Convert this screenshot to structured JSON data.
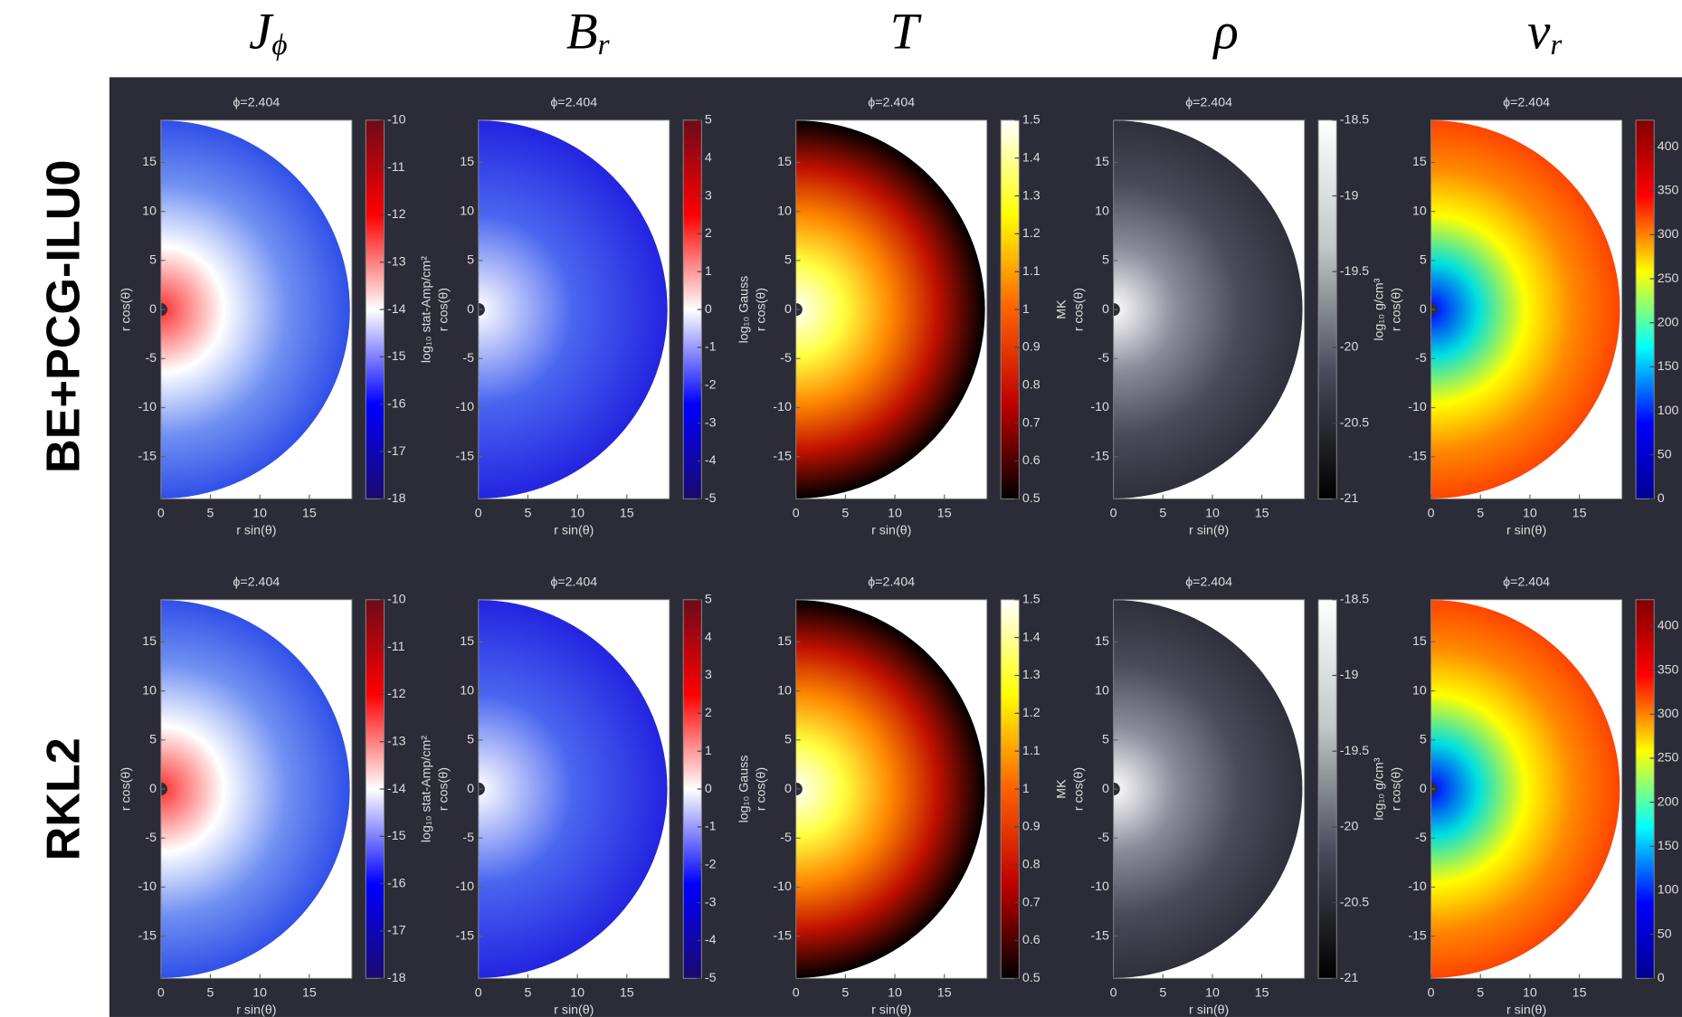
{
  "headers": [
    {
      "symbol": "J",
      "sub": "ϕ"
    },
    {
      "symbol": "B",
      "sub": "r"
    },
    {
      "symbol": "T",
      "sub": ""
    },
    {
      "symbol": "ρ",
      "sub": ""
    },
    {
      "symbol": "v",
      "sub": "r"
    }
  ],
  "row_labels": [
    "BE+PCG-ILU0",
    "RKL2"
  ],
  "chart_data": [
    {
      "type": "heatmap",
      "title": "ϕ=2.404",
      "xlabel": "r sin(θ)",
      "ylabel": "r cos(θ)",
      "xlim": [
        0,
        19.3
      ],
      "ylim": [
        -19.3,
        19.3
      ],
      "xticks": [
        0,
        5,
        10,
        15
      ],
      "yticks": [
        -15,
        -10,
        -5,
        0,
        5,
        10,
        15
      ],
      "field_colors": [
        "#ff3030",
        "#ffffff",
        "#7090f2",
        "#3050e8"
      ],
      "colorbar": {
        "label": "log₁₀ stat-Amp/cm²",
        "lim": [
          -18,
          -10
        ],
        "ticks": [
          -18,
          -17,
          -16,
          -15,
          -14,
          -13,
          -12,
          -11,
          -10
        ],
        "colors": [
          "#1a0a6e",
          "#0000ff",
          "#ffffff",
          "#ff0000",
          "#6e0a1a"
        ]
      }
    },
    {
      "type": "heatmap",
      "title": "ϕ=2.404",
      "xlabel": "r sin(θ)",
      "ylabel": "r cos(θ)",
      "xlim": [
        0,
        19.3
      ],
      "ylim": [
        -19.3,
        19.3
      ],
      "xticks": [
        0,
        5,
        10,
        15
      ],
      "yticks": [
        -15,
        -10,
        -5,
        0,
        5,
        10,
        15
      ],
      "field_colors": [
        "#ffffff",
        "#4a66f0",
        "#2424e0"
      ],
      "colorbar": {
        "label": "log₁₀ Gauss",
        "lim": [
          -5,
          5
        ],
        "ticks": [
          -5,
          -4,
          -3,
          -2,
          -1,
          0,
          1,
          2,
          3,
          4,
          5
        ],
        "colors": [
          "#1a0a6e",
          "#0000ff",
          "#ffffff",
          "#ff0000",
          "#6e0a1a"
        ]
      }
    },
    {
      "type": "heatmap",
      "title": "ϕ=2.404",
      "xlabel": "r sin(θ)",
      "ylabel": "r cos(θ)",
      "xlim": [
        0,
        19.3
      ],
      "ylim": [
        -19.3,
        19.3
      ],
      "xticks": [
        0,
        5,
        10,
        15
      ],
      "yticks": [
        -15,
        -10,
        -5,
        0,
        5,
        10,
        15
      ],
      "field_colors": [
        "#ffffff",
        "#ffff40",
        "#ff8800",
        "#c01000",
        "#000000"
      ],
      "colorbar": {
        "label": "MK",
        "lim": [
          0.5,
          1.5
        ],
        "ticks": [
          0.5,
          0.6,
          0.7,
          0.8,
          0.9,
          1,
          1.1,
          1.2,
          1.3,
          1.4,
          1.5
        ],
        "colors": [
          "#000000",
          "#c00000",
          "#ff6000",
          "#ffff00",
          "#ffffff"
        ]
      }
    },
    {
      "type": "heatmap",
      "title": "ϕ=2.404",
      "xlabel": "r sin(θ)",
      "ylabel": "r cos(θ)",
      "xlim": [
        0,
        19.3
      ],
      "ylim": [
        -19.3,
        19.3
      ],
      "xticks": [
        0,
        5,
        10,
        15
      ],
      "yticks": [
        -15,
        -10,
        -5,
        0,
        5,
        10,
        15
      ],
      "field_colors": [
        "#ffffff",
        "#8a8a99",
        "#4a4a58",
        "#30303c"
      ],
      "colorbar": {
        "label": "log₁₀ g/cm³",
        "lim": [
          -21,
          -18.5
        ],
        "ticks": [
          -21,
          -20.5,
          -20,
          -19.5,
          -19,
          -18.5
        ],
        "colors": [
          "#000000",
          "#4a4a5a",
          "#c0c8c8",
          "#ffffff"
        ]
      }
    },
    {
      "type": "heatmap",
      "title": "ϕ=2.404",
      "xlabel": "r sin(θ)",
      "ylabel": "r cos(θ)",
      "xlim": [
        0,
        19.3
      ],
      "ylim": [
        -19.3,
        19.3
      ],
      "xticks": [
        0,
        5,
        10,
        15
      ],
      "yticks": [
        -15,
        -10,
        -5,
        0,
        5,
        10,
        15
      ],
      "field_colors": [
        "#0000ff",
        "#00e0e0",
        "#ffff00",
        "#ff8800",
        "#ff4400"
      ],
      "colorbar": {
        "lim": [
          0,
          430
        ],
        "ticks": [
          0,
          50,
          100,
          150,
          200,
          250,
          300,
          350,
          400
        ],
        "colors": [
          "#00008f",
          "#0000ff",
          "#00ffff",
          "#ffff00",
          "#ff0000",
          "#800000"
        ]
      }
    },
    {
      "type": "heatmap",
      "title": "ϕ=2.404",
      "xlabel": "r sin(θ)",
      "ylabel": "r cos(θ)",
      "xlim": [
        0,
        19.3
      ],
      "ylim": [
        -19.3,
        19.3
      ],
      "xticks": [
        0,
        5,
        10,
        15
      ],
      "yticks": [
        -15,
        -10,
        -5,
        0,
        5,
        10,
        15
      ],
      "field_colors": [
        "#ff3030",
        "#ffffff",
        "#7090f2",
        "#3050e8"
      ],
      "colorbar": {
        "label": "log₁₀ stat-Amp/cm²",
        "lim": [
          -18,
          -10
        ],
        "ticks": [
          -18,
          -17,
          -16,
          -15,
          -14,
          -13,
          -12,
          -11,
          -10
        ],
        "colors": [
          "#1a0a6e",
          "#0000ff",
          "#ffffff",
          "#ff0000",
          "#6e0a1a"
        ]
      }
    },
    {
      "type": "heatmap",
      "title": "ϕ=2.404",
      "xlabel": "r sin(θ)",
      "ylabel": "r cos(θ)",
      "xlim": [
        0,
        19.3
      ],
      "ylim": [
        -19.3,
        19.3
      ],
      "xticks": [
        0,
        5,
        10,
        15
      ],
      "yticks": [
        -15,
        -10,
        -5,
        0,
        5,
        10,
        15
      ],
      "field_colors": [
        "#ffffff",
        "#4a66f0",
        "#2424e0"
      ],
      "colorbar": {
        "label": "log₁₀ Gauss",
        "lim": [
          -5,
          5
        ],
        "ticks": [
          -5,
          -4,
          -3,
          -2,
          -1,
          0,
          1,
          2,
          3,
          4,
          5
        ],
        "colors": [
          "#1a0a6e",
          "#0000ff",
          "#ffffff",
          "#ff0000",
          "#6e0a1a"
        ]
      }
    },
    {
      "type": "heatmap",
      "title": "ϕ=2.404",
      "xlabel": "r sin(θ)",
      "ylabel": "r cos(θ)",
      "xlim": [
        0,
        19.3
      ],
      "ylim": [
        -19.3,
        19.3
      ],
      "xticks": [
        0,
        5,
        10,
        15
      ],
      "yticks": [
        -15,
        -10,
        -5,
        0,
        5,
        10,
        15
      ],
      "field_colors": [
        "#ffffff",
        "#ffff40",
        "#ff8800",
        "#c01000",
        "#000000"
      ],
      "colorbar": {
        "label": "MK",
        "lim": [
          0.5,
          1.5
        ],
        "ticks": [
          0.5,
          0.6,
          0.7,
          0.8,
          0.9,
          1,
          1.1,
          1.2,
          1.3,
          1.4,
          1.5
        ],
        "colors": [
          "#000000",
          "#c00000",
          "#ff6000",
          "#ffff00",
          "#ffffff"
        ]
      }
    },
    {
      "type": "heatmap",
      "title": "ϕ=2.404",
      "xlabel": "r sin(θ)",
      "ylabel": "r cos(θ)",
      "xlim": [
        0,
        19.3
      ],
      "ylim": [
        -19.3,
        19.3
      ],
      "xticks": [
        0,
        5,
        10,
        15
      ],
      "yticks": [
        -15,
        -10,
        -5,
        0,
        5,
        10,
        15
      ],
      "field_colors": [
        "#ffffff",
        "#8a8a99",
        "#4a4a58",
        "#30303c"
      ],
      "colorbar": {
        "label": "log₁₀ g/cm³",
        "lim": [
          -21,
          -18.5
        ],
        "ticks": [
          -21,
          -20.5,
          -20,
          -19.5,
          -19,
          -18.5
        ],
        "colors": [
          "#000000",
          "#4a4a5a",
          "#c0c8c8",
          "#ffffff"
        ]
      }
    },
    {
      "type": "heatmap",
      "title": "ϕ=2.404",
      "xlabel": "r sin(θ)",
      "ylabel": "r cos(θ)",
      "xlim": [
        0,
        19.3
      ],
      "ylim": [
        -19.3,
        19.3
      ],
      "xticks": [
        0,
        5,
        10,
        15
      ],
      "yticks": [
        -15,
        -10,
        -5,
        0,
        5,
        10,
        15
      ],
      "field_colors": [
        "#0000ff",
        "#00e0e0",
        "#ffff00",
        "#ff8800",
        "#ff4400"
      ],
      "colorbar": {
        "lim": [
          0,
          430
        ],
        "ticks": [
          0,
          50,
          100,
          150,
          200,
          250,
          300,
          350,
          400
        ],
        "colors": [
          "#00008f",
          "#0000ff",
          "#00ffff",
          "#ffff00",
          "#ff0000",
          "#800000"
        ]
      }
    }
  ]
}
